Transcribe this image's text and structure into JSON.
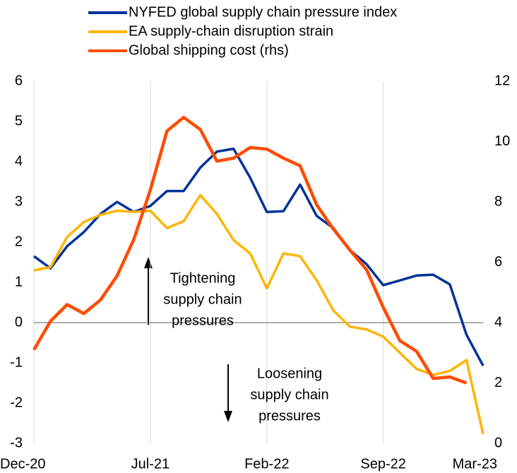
{
  "chart_data": {
    "type": "line",
    "categories": [
      "Dec-20",
      null,
      null,
      null,
      null,
      null,
      null,
      "Jul-21",
      null,
      null,
      null,
      null,
      null,
      null,
      "Feb-22",
      null,
      null,
      null,
      null,
      null,
      null,
      "Sep-22",
      null,
      null,
      null,
      null,
      null,
      "Mar-23"
    ],
    "series": [
      {
        "name": "NYFED global supply chain pressure index",
        "color": "#003299",
        "values": [
          1.65,
          1.35,
          1.9,
          2.25,
          2.7,
          3.0,
          2.75,
          2.9,
          3.27,
          3.27,
          3.85,
          4.25,
          4.32,
          3.6,
          2.75,
          2.77,
          3.43,
          2.65,
          2.35,
          1.8,
          1.45,
          0.93,
          1.05,
          1.17,
          1.19,
          0.95,
          -0.3,
          -1.07
        ]
      },
      {
        "name": "EA supply-chain disruption strain",
        "color": "#FFB400",
        "values": [
          1.3,
          1.38,
          2.13,
          2.5,
          2.68,
          2.78,
          2.75,
          2.78,
          2.35,
          2.52,
          3.17,
          2.7,
          2.05,
          1.72,
          0.85,
          1.72,
          1.65,
          1.05,
          0.3,
          -0.1,
          -0.17,
          -0.35,
          -0.75,
          -1.15,
          -1.3,
          -1.2,
          -0.93,
          -2.77
        ]
      },
      {
        "name": "Global shipping cost (rhs)",
        "color": "#FF4B00",
        "axis": "y2",
        "values": [
          3.1,
          4.05,
          4.6,
          4.3,
          4.75,
          5.55,
          6.75,
          8.4,
          10.35,
          10.8,
          10.4,
          9.35,
          9.45,
          9.8,
          9.75,
          9.45,
          9.2,
          7.9,
          7.1,
          6.4,
          5.75,
          4.5,
          3.4,
          3.05,
          2.15,
          2.2,
          2.0,
          null
        ]
      }
    ],
    "ylim": [
      -3,
      6
    ],
    "yticks": [
      -3,
      -2,
      -1,
      0,
      1,
      2,
      3,
      4,
      5,
      6
    ],
    "y2lim": [
      0,
      12
    ],
    "y2ticks": [
      0,
      2,
      4,
      6,
      8,
      10,
      12
    ],
    "annotations": [
      {
        "lines": [
          "Tightening",
          "supply chain",
          "pressures"
        ]
      },
      {
        "lines": [
          "Loosening",
          "supply chain",
          "pressures"
        ]
      }
    ]
  }
}
